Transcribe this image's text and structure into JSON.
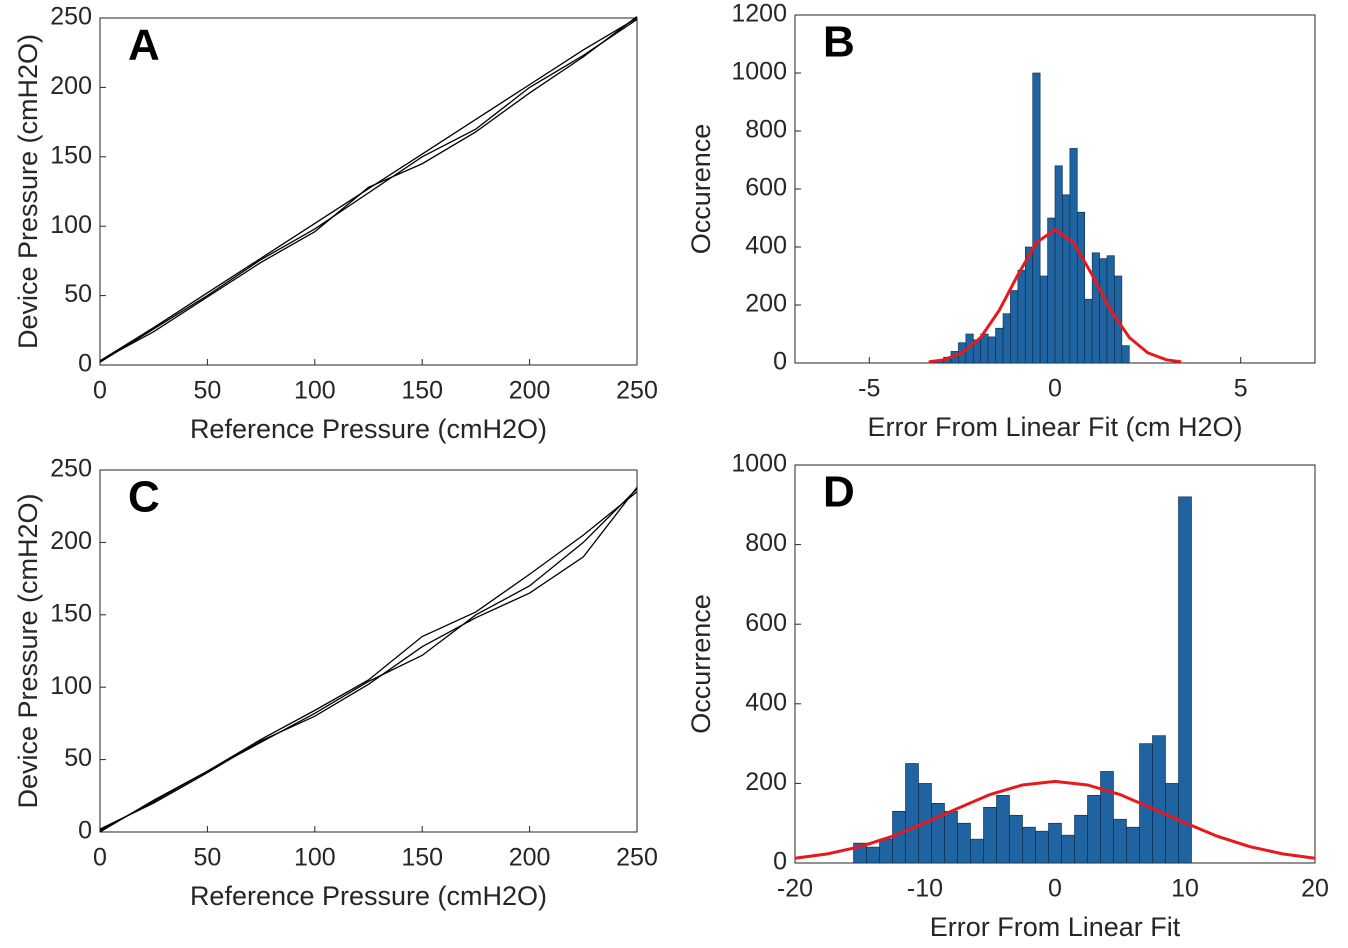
{
  "chart_data": [
    {
      "type": "line",
      "annotation": "A",
      "xlabel": "Reference Pressure (cmH2O)",
      "ylabel": "Device Pressure (cmH2O)",
      "xlim": [
        0,
        250
      ],
      "ylim": [
        0,
        250
      ],
      "xticks": [
        0,
        50,
        100,
        150,
        200,
        250
      ],
      "yticks": [
        0,
        50,
        100,
        150,
        200,
        250
      ],
      "x": [
        0,
        25,
        50,
        75,
        100,
        125,
        150,
        175,
        200,
        225,
        250
      ],
      "series": [
        {
          "color": "#000000",
          "values": [
            3,
            27,
            52,
            77,
            102,
            127,
            152,
            177,
            202,
            227,
            250
          ]
        },
        {
          "color": "#000000",
          "values": [
            2,
            26,
            50,
            76,
            98,
            124,
            150,
            170,
            200,
            223,
            249
          ]
        },
        {
          "color": "#000000",
          "values": [
            3,
            24,
            49,
            74,
            96,
            128,
            145,
            168,
            196,
            222,
            251
          ]
        }
      ]
    },
    {
      "type": "histogram",
      "annotation": "B",
      "xlabel": "Error From Linear Fit (cm H2O)",
      "ylabel": "Occurence",
      "xlim": [
        -7,
        7
      ],
      "ylim": [
        0,
        1200
      ],
      "xticks": [
        -5,
        0,
        5
      ],
      "yticks": [
        0,
        200,
        400,
        600,
        800,
        1000,
        1200
      ],
      "color": "#1f63a0",
      "bins": [
        -3.2,
        -3.0,
        -2.8,
        -2.6,
        -2.4,
        -2.2,
        -2.0,
        -1.8,
        -1.6,
        -1.4,
        -1.2,
        -1.0,
        -0.8,
        -0.6,
        -0.4,
        -0.2,
        0.0,
        0.2,
        0.4,
        0.6,
        0.8,
        1.0,
        1.2,
        1.4,
        1.6,
        1.8,
        2.0
      ],
      "values": [
        10,
        20,
        40,
        70,
        100,
        80,
        100,
        90,
        120,
        170,
        250,
        320,
        400,
        1000,
        300,
        500,
        680,
        580,
        740,
        520,
        220,
        380,
        360,
        370,
        300,
        60
      ],
      "fit": {
        "color": "#e8191c",
        "x": [
          -3.4,
          -3,
          -2.5,
          -2,
          -1.5,
          -1,
          -0.5,
          0,
          0.5,
          1,
          1.5,
          2,
          2.5,
          3,
          3.4
        ],
        "values": [
          4,
          11,
          35,
          88,
          182,
          304,
          415,
          460,
          415,
          304,
          182,
          88,
          35,
          11,
          4
        ]
      }
    },
    {
      "type": "line",
      "annotation": "C",
      "xlabel": "Reference Pressure (cmH2O)",
      "ylabel": "Device Pressure (cmH2O)",
      "xlim": [
        0,
        250
      ],
      "ylim": [
        0,
        250
      ],
      "xticks": [
        0,
        50,
        100,
        150,
        200,
        250
      ],
      "yticks": [
        0,
        50,
        100,
        150,
        200,
        250
      ],
      "x": [
        0,
        25,
        50,
        75,
        100,
        125,
        150,
        175,
        200,
        225,
        250
      ],
      "series": [
        {
          "color": "#000000",
          "values": [
            1,
            21,
            42,
            62,
            82,
            104,
            122,
            150,
            170,
            200,
            237
          ]
        },
        {
          "color": "#000000",
          "values": [
            0,
            22,
            42,
            64,
            84,
            105,
            135,
            152,
            178,
            205,
            235
          ]
        },
        {
          "color": "#000000",
          "values": [
            2,
            20,
            41,
            63,
            80,
            102,
            128,
            148,
            165,
            190,
            238
          ]
        }
      ]
    },
    {
      "type": "histogram",
      "annotation": "D",
      "xlabel": "Error From Linear Fit",
      "ylabel": "Occurrence",
      "xlim": [
        -20,
        20
      ],
      "ylim": [
        0,
        1000
      ],
      "xticks": [
        -20,
        -10,
        0,
        10,
        20
      ],
      "yticks": [
        0,
        200,
        400,
        600,
        800,
        1000
      ],
      "color": "#1f63a0",
      "bins": [
        -15.5,
        -14.5,
        -13.5,
        -12.5,
        -11.5,
        -10.5,
        -9.5,
        -8.5,
        -7.5,
        -6.5,
        -5.5,
        -4.5,
        -3.5,
        -2.5,
        -1.5,
        -0.5,
        0.5,
        1.5,
        2.5,
        3.5,
        4.5,
        5.5,
        6.5,
        7.5,
        8.5,
        9.5,
        10.5
      ],
      "values": [
        50,
        40,
        60,
        130,
        250,
        200,
        150,
        130,
        100,
        60,
        140,
        170,
        120,
        90,
        80,
        100,
        70,
        120,
        170,
        230,
        110,
        90,
        300,
        320,
        200,
        920
      ],
      "fit": {
        "color": "#e8191c",
        "x": [
          -20,
          -17.5,
          -15,
          -12.5,
          -10,
          -7.5,
          -5,
          -2.5,
          0,
          2.5,
          5,
          7.5,
          10,
          12.5,
          15,
          17.5,
          20
        ],
        "values": [
          12,
          23,
          41,
          67,
          101,
          137,
          172,
          196,
          205,
          196,
          172,
          137,
          101,
          67,
          41,
          23,
          12
        ]
      }
    }
  ]
}
